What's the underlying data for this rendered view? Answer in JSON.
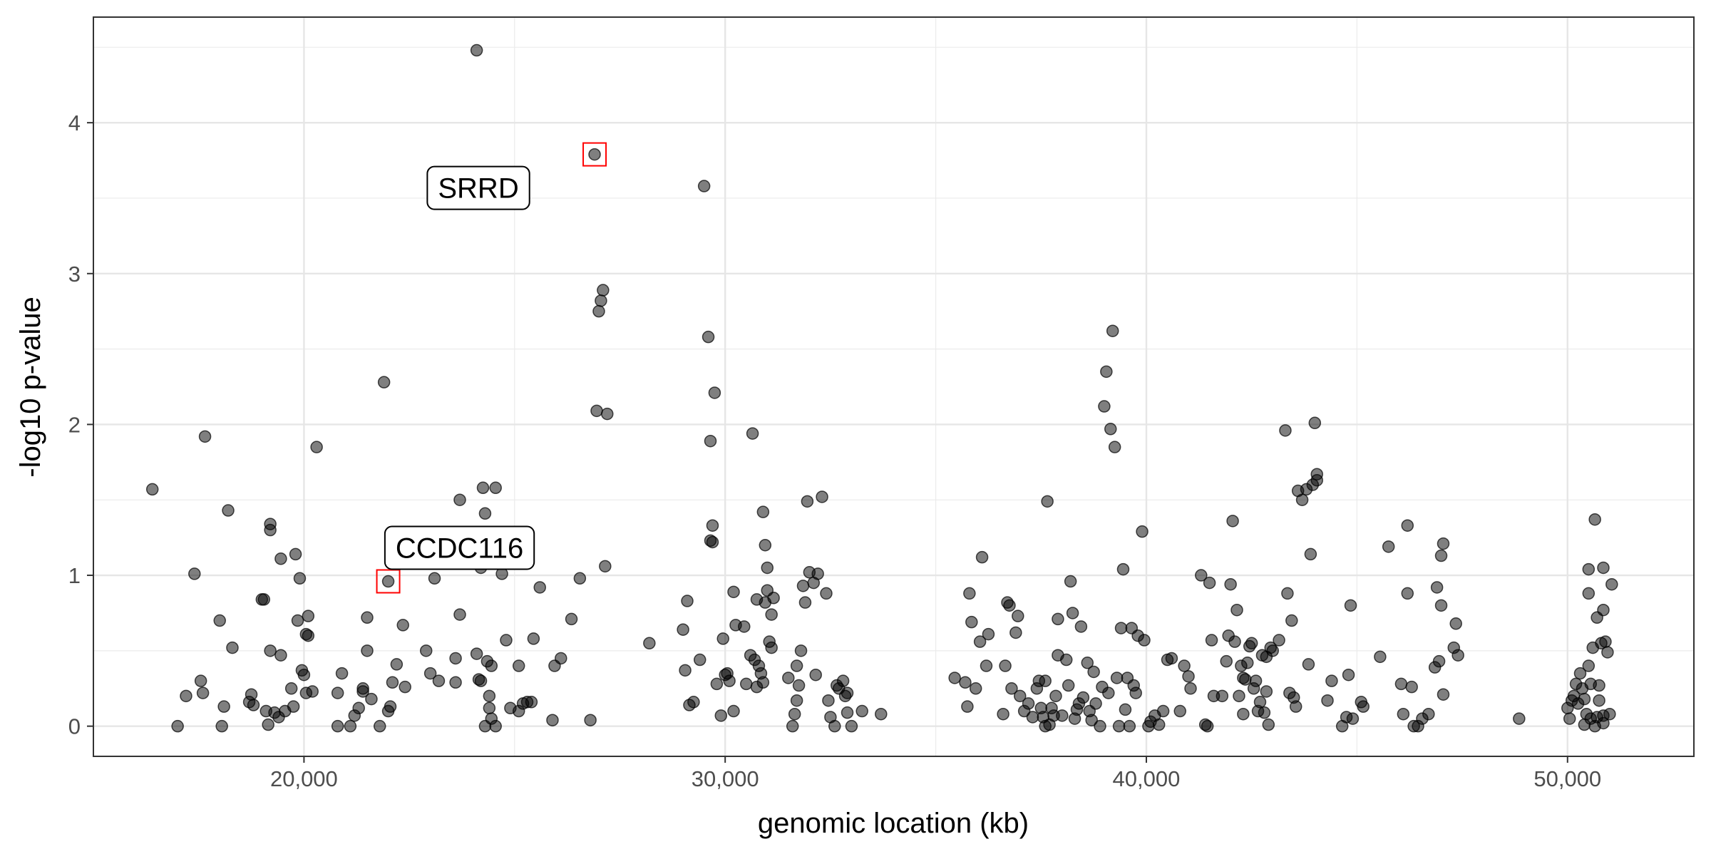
{
  "chart_data": {
    "type": "scatter",
    "xlabel": "genomic location (kb)",
    "ylabel": "-log10 p-value",
    "xlim": [
      15000,
      53000
    ],
    "ylim": [
      -0.2,
      4.7
    ],
    "x_ticks": [
      20000,
      30000,
      40000,
      50000
    ],
    "x_tick_labels": [
      "20,000",
      "30,000",
      "40,000",
      "50,000"
    ],
    "y_ticks": [
      0,
      1,
      2,
      3,
      4
    ],
    "y_tick_labels": [
      "0",
      "1",
      "2",
      "3",
      "4"
    ],
    "grid": true,
    "point_color": "#000000",
    "point_opacity": 0.5,
    "highlight_color": "#ff0000",
    "highlighted": [
      {
        "label": "SRRD",
        "x": 26900,
        "y": 3.79
      },
      {
        "label": "CCDC116",
        "x": 22000,
        "y": 0.96
      }
    ],
    "points": [
      [
        16400,
        1.57
      ],
      [
        17000,
        0
      ],
      [
        17200,
        0.2
      ],
      [
        17400,
        1.01
      ],
      [
        17550,
        0.3
      ],
      [
        17600,
        0.22
      ],
      [
        17650,
        1.92
      ],
      [
        18000,
        0.7
      ],
      [
        18050,
        0
      ],
      [
        18100,
        0.13
      ],
      [
        18200,
        1.43
      ],
      [
        18300,
        0.52
      ],
      [
        18700,
        0.16
      ],
      [
        18750,
        0.21
      ],
      [
        18800,
        0.14
      ],
      [
        19000,
        0.84
      ],
      [
        19050,
        0.84
      ],
      [
        19100,
        0.1
      ],
      [
        19150,
        0.01
      ],
      [
        19200,
        1.34
      ],
      [
        19200,
        1.3
      ],
      [
        19200,
        0.5
      ],
      [
        19300,
        0.09
      ],
      [
        19400,
        0.06
      ],
      [
        19450,
        1.11
      ],
      [
        19450,
        0.47
      ],
      [
        19550,
        0.1
      ],
      [
        19700,
        0.25
      ],
      [
        19750,
        0.13
      ],
      [
        19800,
        1.14
      ],
      [
        19850,
        0.7
      ],
      [
        19900,
        0.98
      ],
      [
        19950,
        0.37
      ],
      [
        20000,
        0.34
      ],
      [
        20050,
        0.22
      ],
      [
        20050,
        0.61
      ],
      [
        20100,
        0.73
      ],
      [
        20100,
        0.6
      ],
      [
        20200,
        0.23
      ],
      [
        20300,
        1.85
      ],
      [
        20800,
        0.22
      ],
      [
        20800,
        0
      ],
      [
        20900,
        0.35
      ],
      [
        21100,
        0
      ],
      [
        21200,
        0.07
      ],
      [
        21300,
        0.12
      ],
      [
        21400,
        0.23
      ],
      [
        21400,
        0.25
      ],
      [
        21500,
        0.5
      ],
      [
        21500,
        0.72
      ],
      [
        21600,
        0.18
      ],
      [
        21800,
        0
      ],
      [
        21900,
        2.28
      ],
      [
        22000,
        0.1
      ],
      [
        22050,
        0.13
      ],
      [
        22100,
        0.29
      ],
      [
        22200,
        0.41
      ],
      [
        22350,
        0.67
      ],
      [
        22400,
        0.26
      ],
      [
        22900,
        0.5
      ],
      [
        23000,
        0.35
      ],
      [
        23100,
        0.98
      ],
      [
        23200,
        0.3
      ],
      [
        23600,
        0.29
      ],
      [
        23600,
        0.45
      ],
      [
        23700,
        0.74
      ],
      [
        23700,
        1.5
      ],
      [
        24100,
        0.48
      ],
      [
        24150,
        0.31
      ],
      [
        24200,
        0.3
      ],
      [
        24200,
        1.05
      ],
      [
        24250,
        1.58
      ],
      [
        24300,
        0
      ],
      [
        24300,
        1.41
      ],
      [
        24350,
        0.43
      ],
      [
        24400,
        0.2
      ],
      [
        24400,
        0.12
      ],
      [
        24450,
        0.4
      ],
      [
        24450,
        0.05
      ],
      [
        24550,
        0
      ],
      [
        24550,
        1.58
      ],
      [
        24700,
        1.01
      ],
      [
        24800,
        0.57
      ],
      [
        24900,
        0.12
      ],
      [
        25100,
        0.4
      ],
      [
        25100,
        0.1
      ],
      [
        25200,
        0.15
      ],
      [
        25300,
        0.16
      ],
      [
        25400,
        0.16
      ],
      [
        25450,
        0.58
      ],
      [
        25600,
        0.92
      ],
      [
        25900,
        0.04
      ],
      [
        25950,
        0.4
      ],
      [
        26100,
        0.45
      ],
      [
        26350,
        0.71
      ],
      [
        26550,
        0.98
      ],
      [
        26800,
        0.04
      ],
      [
        24100,
        4.48
      ],
      [
        26950,
        2.09
      ],
      [
        27000,
        2.75
      ],
      [
        27050,
        2.82
      ],
      [
        27100,
        2.89
      ],
      [
        27150,
        1.06
      ],
      [
        27200,
        2.07
      ],
      [
        28200,
        0.55
      ],
      [
        29000,
        0.64
      ],
      [
        29050,
        0.37
      ],
      [
        29100,
        0.83
      ],
      [
        29150,
        0.14
      ],
      [
        29250,
        0.16
      ],
      [
        29400,
        0.44
      ],
      [
        29500,
        3.58
      ],
      [
        29600,
        2.58
      ],
      [
        29650,
        1.89
      ],
      [
        29650,
        1.23
      ],
      [
        29700,
        1.22
      ],
      [
        29700,
        1.33
      ],
      [
        29750,
        2.21
      ],
      [
        29800,
        0.28
      ],
      [
        29900,
        0.07
      ],
      [
        29950,
        0.58
      ],
      [
        30000,
        0.34
      ],
      [
        30050,
        0.35
      ],
      [
        30100,
        0.3
      ],
      [
        30200,
        0.1
      ],
      [
        30200,
        0.89
      ],
      [
        30250,
        0.67
      ],
      [
        30450,
        0.66
      ],
      [
        30500,
        0.28
      ],
      [
        30600,
        0.47
      ],
      [
        30650,
        1.94
      ],
      [
        30700,
        0.44
      ],
      [
        30750,
        0.26
      ],
      [
        30750,
        0.84
      ],
      [
        30800,
        0.4
      ],
      [
        30850,
        0.35
      ],
      [
        30900,
        0.29
      ],
      [
        30900,
        1.42
      ],
      [
        30950,
        0.82
      ],
      [
        30950,
        1.2
      ],
      [
        31000,
        0.9
      ],
      [
        31000,
        1.05
      ],
      [
        31050,
        0.56
      ],
      [
        31100,
        0.74
      ],
      [
        31100,
        0.52
      ],
      [
        31150,
        0.85
      ],
      [
        31500,
        0.32
      ],
      [
        31600,
        0
      ],
      [
        31650,
        0.08
      ],
      [
        31700,
        0.17
      ],
      [
        31700,
        0.4
      ],
      [
        31750,
        0.27
      ],
      [
        31800,
        0.5
      ],
      [
        31850,
        0.93
      ],
      [
        31900,
        0.82
      ],
      [
        31950,
        1.49
      ],
      [
        32000,
        1.02
      ],
      [
        32100,
        0.95
      ],
      [
        32150,
        0.34
      ],
      [
        32200,
        1.01
      ],
      [
        32300,
        1.52
      ],
      [
        32400,
        0.88
      ],
      [
        32450,
        0.17
      ],
      [
        32500,
        0.06
      ],
      [
        32600,
        0
      ],
      [
        32650,
        0.27
      ],
      [
        32700,
        0.25
      ],
      [
        32800,
        0.3
      ],
      [
        32850,
        0.2
      ],
      [
        32900,
        0.09
      ],
      [
        32900,
        0.22
      ],
      [
        33000,
        0
      ],
      [
        33250,
        0.1
      ],
      [
        33700,
        0.08
      ],
      [
        35450,
        0.32
      ],
      [
        35700,
        0.29
      ],
      [
        35750,
        0.13
      ],
      [
        35800,
        0.88
      ],
      [
        35850,
        0.69
      ],
      [
        35950,
        0.25
      ],
      [
        36050,
        0.56
      ],
      [
        36100,
        1.12
      ],
      [
        36200,
        0.4
      ],
      [
        36250,
        0.61
      ],
      [
        36600,
        0.08
      ],
      [
        36650,
        0.4
      ],
      [
        36700,
        0.82
      ],
      [
        36750,
        0.8
      ],
      [
        36800,
        0.25
      ],
      [
        36900,
        0.62
      ],
      [
        36950,
        0.73
      ],
      [
        37000,
        0.2
      ],
      [
        37100,
        0.1
      ],
      [
        37200,
        0.15
      ],
      [
        37300,
        0.06
      ],
      [
        37400,
        0.25
      ],
      [
        37450,
        0.3
      ],
      [
        37500,
        0.12
      ],
      [
        37550,
        0.06
      ],
      [
        37600,
        0
      ],
      [
        37600,
        0.3
      ],
      [
        37650,
        1.49
      ],
      [
        37700,
        0.01
      ],
      [
        37750,
        0.12
      ],
      [
        37800,
        0.07
      ],
      [
        37850,
        0.2
      ],
      [
        37900,
        0.47
      ],
      [
        37900,
        0.71
      ],
      [
        38000,
        0.07
      ],
      [
        38100,
        0.44
      ],
      [
        38150,
        0.27
      ],
      [
        38200,
        0.96
      ],
      [
        38250,
        0.75
      ],
      [
        38300,
        0.05
      ],
      [
        38350,
        0.11
      ],
      [
        38400,
        0.15
      ],
      [
        38450,
        0.66
      ],
      [
        38500,
        0.19
      ],
      [
        38600,
        0.42
      ],
      [
        38650,
        0.1
      ],
      [
        38700,
        0.04
      ],
      [
        38750,
        0.36
      ],
      [
        38800,
        0.15
      ],
      [
        38900,
        0
      ],
      [
        38950,
        0.26
      ],
      [
        39000,
        2.12
      ],
      [
        39050,
        2.35
      ],
      [
        39100,
        0.22
      ],
      [
        39150,
        1.97
      ],
      [
        39200,
        2.62
      ],
      [
        39250,
        1.85
      ],
      [
        39300,
        0.32
      ],
      [
        39350,
        0
      ],
      [
        39400,
        0.65
      ],
      [
        39450,
        1.04
      ],
      [
        39500,
        0.11
      ],
      [
        39550,
        0.32
      ],
      [
        39600,
        0
      ],
      [
        39650,
        0.65
      ],
      [
        39700,
        0.27
      ],
      [
        39750,
        0.22
      ],
      [
        39800,
        0.6
      ],
      [
        39900,
        1.29
      ],
      [
        39950,
        0.57
      ],
      [
        40050,
        0
      ],
      [
        40100,
        0.03
      ],
      [
        40200,
        0.07
      ],
      [
        40300,
        0.01
      ],
      [
        40400,
        0.1
      ],
      [
        40500,
        0.44
      ],
      [
        40600,
        0.45
      ],
      [
        40800,
        0.1
      ],
      [
        40900,
        0.4
      ],
      [
        41000,
        0.33
      ],
      [
        41050,
        0.25
      ],
      [
        41300,
        1
      ],
      [
        41400,
        0.01
      ],
      [
        41450,
        0
      ],
      [
        41500,
        0.95
      ],
      [
        41550,
        0.57
      ],
      [
        41600,
        0.2
      ],
      [
        41800,
        0.2
      ],
      [
        41900,
        0.43
      ],
      [
        41950,
        0.6
      ],
      [
        42000,
        0.94
      ],
      [
        42050,
        1.36
      ],
      [
        42100,
        0.56
      ],
      [
        42150,
        0.77
      ],
      [
        42200,
        0.2
      ],
      [
        42250,
        0.4
      ],
      [
        42300,
        0.08
      ],
      [
        42300,
        0.32
      ],
      [
        42350,
        0.31
      ],
      [
        42400,
        0.42
      ],
      [
        42450,
        0.53
      ],
      [
        42500,
        0.55
      ],
      [
        42550,
        0.25
      ],
      [
        42600,
        0.3
      ],
      [
        42650,
        0.1
      ],
      [
        42700,
        0.16
      ],
      [
        42750,
        0.47
      ],
      [
        42800,
        0.09
      ],
      [
        42850,
        0.23
      ],
      [
        42850,
        0.46
      ],
      [
        42900,
        0.01
      ],
      [
        42950,
        0.52
      ],
      [
        43000,
        0.5
      ],
      [
        43150,
        0.57
      ],
      [
        43300,
        1.96
      ],
      [
        43350,
        0.88
      ],
      [
        43400,
        0.22
      ],
      [
        43450,
        0.7
      ],
      [
        43500,
        0.19
      ],
      [
        43550,
        0.13
      ],
      [
        43600,
        1.56
      ],
      [
        43700,
        1.5
      ],
      [
        43800,
        1.57
      ],
      [
        43850,
        0.41
      ],
      [
        43900,
        1.14
      ],
      [
        43950,
        1.6
      ],
      [
        44000,
        2.01
      ],
      [
        44050,
        1.63
      ],
      [
        44050,
        1.67
      ],
      [
        44300,
        0.17
      ],
      [
        44400,
        0.3
      ],
      [
        44650,
        0
      ],
      [
        44750,
        0.06
      ],
      [
        44800,
        0.34
      ],
      [
        44850,
        0.8
      ],
      [
        44900,
        0.05
      ],
      [
        45100,
        0.16
      ],
      [
        45150,
        0.13
      ],
      [
        45550,
        0.46
      ],
      [
        45750,
        1.19
      ],
      [
        46050,
        0.28
      ],
      [
        46100,
        0.08
      ],
      [
        46200,
        0.88
      ],
      [
        46200,
        1.33
      ],
      [
        46300,
        0.26
      ],
      [
        46350,
        0
      ],
      [
        46450,
        0
      ],
      [
        46550,
        0.05
      ],
      [
        46700,
        0.08
      ],
      [
        46850,
        0.39
      ],
      [
        46900,
        0.92
      ],
      [
        46950,
        0.43
      ],
      [
        47000,
        0.8
      ],
      [
        47000,
        1.13
      ],
      [
        47050,
        1.21
      ],
      [
        47050,
        0.21
      ],
      [
        47300,
        0.52
      ],
      [
        47350,
        0.68
      ],
      [
        47400,
        0.47
      ],
      [
        48850,
        0.05
      ],
      [
        50000,
        0.12
      ],
      [
        50050,
        0.05
      ],
      [
        50100,
        0.17
      ],
      [
        50150,
        0.2
      ],
      [
        50200,
        0.28
      ],
      [
        50250,
        0.15
      ],
      [
        50300,
        0.35
      ],
      [
        50350,
        0.25
      ],
      [
        50400,
        0.18
      ],
      [
        50400,
        0.01
      ],
      [
        50450,
        0.08
      ],
      [
        50500,
        0.4
      ],
      [
        50500,
        1.04
      ],
      [
        50550,
        0.28
      ],
      [
        50550,
        0.05
      ],
      [
        50600,
        0.52
      ],
      [
        50650,
        0
      ],
      [
        50700,
        0.72
      ],
      [
        50700,
        0.06
      ],
      [
        50750,
        0.27
      ],
      [
        50800,
        0.55
      ],
      [
        50850,
        0.77
      ],
      [
        50850,
        1.05
      ],
      [
        50900,
        0.56
      ],
      [
        50950,
        0.49
      ],
      [
        51000,
        0.08
      ],
      [
        51050,
        0.94
      ],
      [
        50500,
        0.88
      ],
      [
        50650,
        1.37
      ],
      [
        50750,
        0.17
      ],
      [
        50850,
        0.02
      ],
      [
        50850,
        0.07
      ]
    ]
  }
}
